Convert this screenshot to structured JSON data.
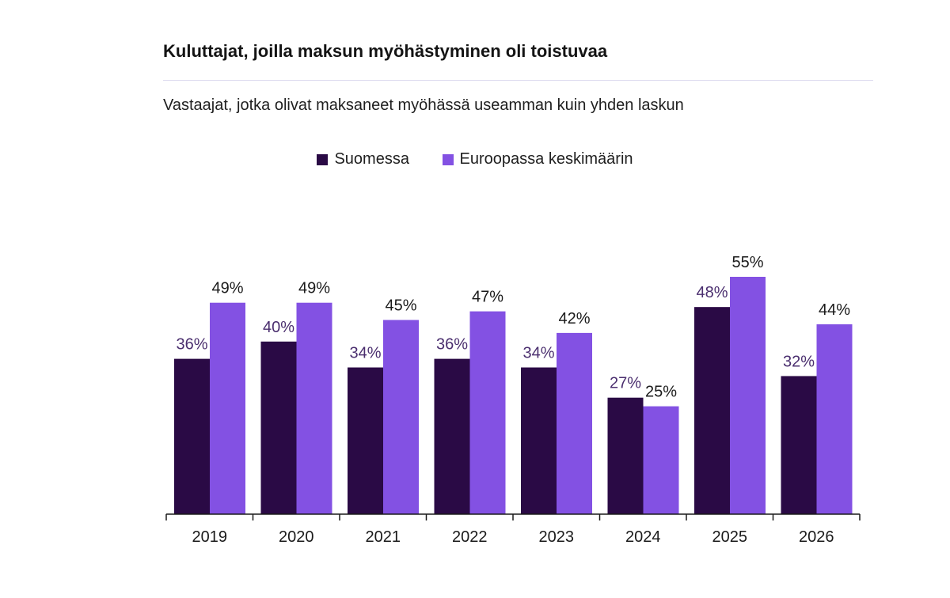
{
  "colors": {
    "finland": "#2a0a45",
    "europe": "#8351e3",
    "finland_label": "#4b2f6f",
    "europe_label": "#1a1a1a",
    "axis": "#1a1a1a",
    "rule": "#dcd9ee"
  },
  "chart_data": {
    "type": "bar",
    "title": "Kuluttajat, joilla maksun myöhästyminen oli toistuvaa",
    "subtitle": "Vastaajat, jotka olivat maksaneet myöhässä useamman kuin yhden laskun",
    "categories": [
      "2019",
      "2020",
      "2021",
      "2022",
      "2023",
      "2024",
      "2025",
      "2026"
    ],
    "series": [
      {
        "name": "Suomessa",
        "values": [
          36,
          40,
          34,
          36,
          34,
          27,
          48,
          32
        ],
        "labels": [
          "36%",
          "40%",
          "34%",
          "36%",
          "34%",
          "27%",
          "48%",
          "32%"
        ]
      },
      {
        "name": "Euroopassa keskimäärin",
        "values": [
          49,
          49,
          45,
          47,
          42,
          25,
          55,
          44
        ],
        "labels": [
          "49%",
          "49%",
          "45%",
          "47%",
          "42%",
          "25%",
          "55%",
          "44%"
        ]
      }
    ],
    "ylim": [
      0,
      55
    ],
    "legend": "top-center",
    "grid": false
  }
}
